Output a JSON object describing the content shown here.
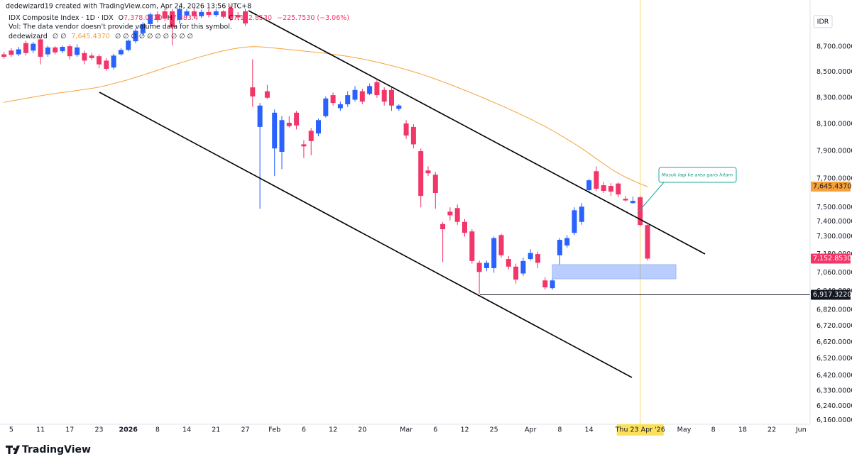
{
  "chart_data": {
    "type": "candlestick",
    "header": "dedewizard19 created with TradingView.com, Apr 24, 2026 13:56 UTC+8",
    "title": "IDX Composite Index · 1D · IDX",
    "ohlc": [
      {
        "key": "O",
        "value": "7,378.0720"
      },
      {
        "key": "H",
        "value": "7,383.4"
      },
      {
        "key": "C",
        "value": "7,152.8530"
      }
    ],
    "change": "−225.7530 (−3.06%)",
    "volume_note": "Vol: The data vendor doesn't provide volume data for this symbol.",
    "currency": "IDR",
    "watermark": "TradingView",
    "annotation": "Masuk lagi ke area garis hitam",
    "log": true,
    "grid": false,
    "ylim": [
      6137,
      9085
    ],
    "yticks": [
      {
        "value": 8700,
        "label": "8,700.0000"
      },
      {
        "value": 8500,
        "label": "8,500.0000"
      },
      {
        "value": 8300,
        "label": "8,300.0000"
      },
      {
        "value": 8100,
        "label": "8,100.0000"
      },
      {
        "value": 7900,
        "label": "7,900.0000"
      },
      {
        "value": 7700,
        "label": "7,700.0000"
      },
      {
        "value": 7500,
        "label": "7,500.0000"
      },
      {
        "value": 7400,
        "label": "7,400.0000"
      },
      {
        "value": 7300,
        "label": "7,300.0000"
      },
      {
        "value": 7180,
        "label": "7,180.0000"
      },
      {
        "value": 7060,
        "label": "7,060.0000"
      },
      {
        "value": 6940,
        "label": "6,940.0000"
      },
      {
        "value": 6820,
        "label": "6,820.0000"
      },
      {
        "value": 6720,
        "label": "6,720.0000"
      },
      {
        "value": 6620,
        "label": "6,620.0000"
      },
      {
        "value": 6520,
        "label": "6,520.0000"
      },
      {
        "value": 6420,
        "label": "6,420.0000"
      },
      {
        "value": 6330,
        "label": "6,330.0000"
      },
      {
        "value": 6240,
        "label": "6,240.0000"
      },
      {
        "value": 6160,
        "label": "6,160.0000"
      }
    ],
    "hline": {
      "value": 6917.322,
      "label": "6,917.3220"
    },
    "crosshair": true,
    "categories": [
      null,
      "5",
      null,
      null,
      null,
      "11",
      null,
      null,
      null,
      "17",
      null,
      null,
      null,
      "23",
      null,
      null,
      null,
      "2026",
      null,
      null,
      null,
      "8",
      null,
      null,
      null,
      "14",
      null,
      null,
      null,
      "21",
      null,
      null,
      null,
      "27",
      null,
      null,
      null,
      "Feb",
      null,
      null,
      null,
      "6",
      null,
      null,
      null,
      "12",
      null,
      null,
      null,
      "20",
      null,
      null,
      null,
      null,
      null,
      "Mar",
      null,
      null,
      null,
      "6",
      null,
      null,
      null,
      "12",
      null,
      null,
      null,
      "25",
      null,
      null,
      null,
      null,
      "Apr",
      null,
      null,
      null,
      "8",
      null,
      null,
      null,
      "14",
      null,
      null,
      null,
      null,
      null,
      null,
      "Thu 23 Apr '26",
      null,
      null,
      null,
      null,
      null,
      "May",
      null,
      null,
      null,
      "8",
      null,
      null,
      null,
      "18",
      null,
      null,
      null,
      "22",
      null,
      null,
      null,
      "Jun"
    ],
    "candles": {
      "up_color": "#2962ff",
      "down_color": "#f23669",
      "open": [
        8640,
        8670,
        8640,
        8730,
        8670,
        8760,
        8640,
        8695,
        8665,
        8705,
        8635,
        8650,
        8630,
        8625,
        8590,
        8535,
        8640,
        8675,
        8745,
        8810,
        8885,
        8965,
        8990,
        8990,
        8920,
        8955,
        8990,
        8950,
        8985,
        8960,
        8990,
        9020,
        8960,
        8990,
        8380,
        8079,
        8350,
        7920,
        7895,
        8110,
        8186,
        7950,
        8050,
        8030,
        8160,
        8320,
        8220,
        8250,
        8285,
        8350,
        8330,
        8420,
        8360,
        8360,
        8215,
        8105,
        8079,
        7900,
        7760,
        7730,
        7385,
        7470,
        7495,
        7400,
        7335,
        7125,
        7090,
        7090,
        7310,
        7150,
        7100,
        7055,
        7150,
        7183,
        7010,
        6960,
        7175,
        7240,
        7325,
        7400,
        7620,
        7755,
        7655,
        7650,
        7667,
        7560,
        7530,
        7570,
        7378.072,
        null,
        null,
        null,
        null,
        null,
        null,
        null,
        null,
        null,
        null,
        null,
        null,
        null,
        null,
        null,
        null,
        null,
        null,
        null,
        null,
        null
      ],
      "high": [
        8660,
        8690,
        8700,
        8750,
        8740,
        8780,
        8710,
        8705,
        8710,
        8720,
        8720,
        8670,
        8650,
        8640,
        8610,
        8645,
        8690,
        8760,
        8850,
        8900,
        8980,
        8990,
        9010,
        9010,
        9030,
        9010,
        9020,
        9005,
        9010,
        9010,
        9000,
        9040,
        8985,
        9010,
        8600,
        8260,
        8400,
        8210,
        8160,
        8160,
        8200,
        7980,
        8070,
        8140,
        8310,
        8340,
        8270,
        8350,
        8390,
        8370,
        8410,
        8440,
        8380,
        8380,
        8250,
        8130,
        8100,
        7920,
        7790,
        7750,
        7400,
        7500,
        7520,
        7420,
        7350,
        7140,
        7140,
        7300,
        7320,
        7170,
        7120,
        7160,
        7215,
        7200,
        7030,
        7040,
        7290,
        7310,
        7500,
        7530,
        7700,
        7790,
        7680,
        7670,
        7675,
        7580,
        7575,
        7580,
        7383.4,
        null,
        null,
        null,
        null,
        null,
        null,
        null,
        null,
        null,
        null,
        null,
        null,
        null,
        null,
        null,
        null,
        null,
        null,
        null,
        null,
        null
      ],
      "low": [
        8605,
        8620,
        8625,
        8630,
        8650,
        8560,
        8620,
        8640,
        8650,
        8600,
        8620,
        8560,
        8595,
        8530,
        8510,
        8520,
        8630,
        8665,
        8730,
        8790,
        8870,
        8900,
        8910,
        8710,
        8890,
        8940,
        8930,
        8935,
        8940,
        8945,
        8930,
        8910,
        8920,
        8870,
        8230,
        7490,
        8290,
        7720,
        7770,
        8075,
        8060,
        7850,
        7870,
        8010,
        8150,
        8240,
        8200,
        8230,
        8270,
        8250,
        8320,
        8300,
        8240,
        8200,
        8200,
        7990,
        7920,
        7500,
        7720,
        7490,
        7130,
        7410,
        7380,
        7300,
        7120,
        6925,
        7070,
        7060,
        7160,
        7080,
        6990,
        7040,
        7140,
        7090,
        6950,
        6950,
        7110,
        7225,
        7310,
        7380,
        7600,
        7615,
        7600,
        7580,
        7570,
        7540,
        7525,
        7370,
        7140,
        null,
        null,
        null,
        null,
        null,
        null,
        null,
        null,
        null,
        null,
        null,
        null,
        null,
        null,
        null,
        null,
        null,
        null,
        null,
        null,
        null
      ],
      "close": [
        8620,
        8635,
        8680,
        8650,
        8725,
        8620,
        8695,
        8655,
        8700,
        8625,
        8695,
        8590,
        8610,
        8560,
        8525,
        8630,
        8675,
        8750,
        8830,
        8885,
        8965,
        8920,
        8930,
        8860,
        9010,
        8990,
        8950,
        8985,
        8960,
        8990,
        8945,
        8930,
        8940,
        8890,
        8310,
        8240,
        8300,
        8186,
        8130,
        8085,
        8090,
        7935,
        7974,
        8130,
        8294,
        8260,
        8250,
        8320,
        8360,
        8270,
        8390,
        8320,
        8270,
        8240,
        8240,
        8015,
        7950,
        7580,
        7740,
        7600,
        7350,
        7445,
        7400,
        7325,
        7137,
        7065,
        7125,
        7290,
        7175,
        7100,
        7015,
        7137,
        7190,
        7125,
        6965,
        7010,
        7278,
        7290,
        7480,
        7505,
        7690,
        7630,
        7615,
        7610,
        7590,
        7548,
        7545,
        7378.606,
        7152.853,
        null,
        null,
        null,
        null,
        null,
        null,
        null,
        null,
        null,
        null,
        null,
        null,
        null,
        null,
        null,
        null,
        null,
        null,
        null,
        null,
        null
      ]
    },
    "ma": {
      "name": "dedewizard",
      "params": "∅ ∅",
      "outputs": "∅ ∅ ∅ ∅ ∅ ∅ ∅ ∅ ∅ ∅",
      "last_label": "7,645.4370",
      "color": "#f5a23a",
      "values": [
        8265,
        8275,
        8285,
        8295,
        8305,
        8315,
        8325,
        8333,
        8340,
        8348,
        8356,
        8364,
        8372,
        8382,
        8395,
        8410,
        8425,
        8440,
        8458,
        8476,
        8495,
        8514,
        8533,
        8552,
        8570,
        8588,
        8605,
        8622,
        8638,
        8654,
        8668,
        8680,
        8690,
        8698,
        8702,
        8700,
        8696,
        8690,
        8684,
        8678,
        8672,
        8666,
        8660,
        8654,
        8648,
        8640,
        8632,
        8624,
        8614,
        8603,
        8591,
        8578,
        8564,
        8550,
        8535,
        8519,
        8502,
        8484,
        8465,
        8445,
        8424,
        8402,
        8380,
        8358,
        8335,
        8312,
        8288,
        8264,
        8240,
        8215,
        8190,
        8164,
        8138,
        8110,
        8082,
        8052,
        8020,
        7988,
        7955,
        7920,
        7883,
        7845,
        7808,
        7772,
        7740,
        7712,
        7688,
        7665,
        7645.437,
        null,
        null,
        null,
        null,
        null,
        null,
        null,
        null,
        null,
        null,
        null,
        null,
        null,
        null,
        null,
        null,
        null,
        null,
        null,
        null,
        null
      ]
    }
  }
}
